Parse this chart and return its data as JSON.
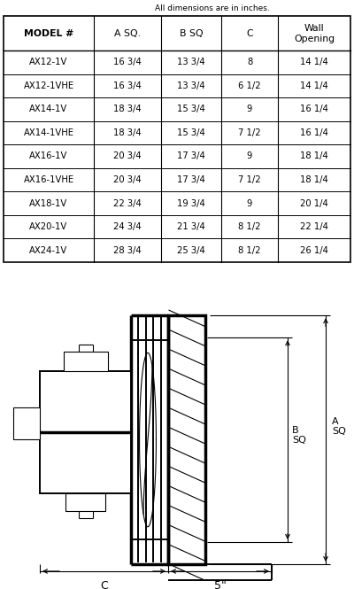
{
  "title_note": "All dimensions are in inches.",
  "headers": [
    "MODEL #",
    "A SQ.",
    "B SQ",
    "C",
    "Wall\nOpening"
  ],
  "rows": [
    [
      "AX12-1V",
      "16 3/4",
      "13 3/4",
      "8",
      "14 1/4"
    ],
    [
      "AX12-1VHE",
      "16 3/4",
      "13 3/4",
      "6 1/2",
      "14 1/4"
    ],
    [
      "AX14-1V",
      "18 3/4",
      "15 3/4",
      "9",
      "16 1/4"
    ],
    [
      "AX14-1VHE",
      "18 3/4",
      "15 3/4",
      "7 1/2",
      "16 1/4"
    ],
    [
      "AX16-1V",
      "20 3/4",
      "17 3/4",
      "9",
      "18 1/4"
    ],
    [
      "AX16-1VHE",
      "20 3/4",
      "17 3/4",
      "7 1/2",
      "18 1/4"
    ],
    [
      "AX18-1V",
      "22 3/4",
      "19 3/4",
      "9",
      "20 1/4"
    ],
    [
      "AX20-1V",
      "24 3/4",
      "21 3/4",
      "8 1/2",
      "22 1/4"
    ],
    [
      "AX24-1V",
      "28 3/4",
      "25 3/4",
      "8 1/2",
      "26 1/4"
    ]
  ],
  "bg_color": "#ffffff",
  "line_color": "#000000",
  "text_color": "#000000"
}
